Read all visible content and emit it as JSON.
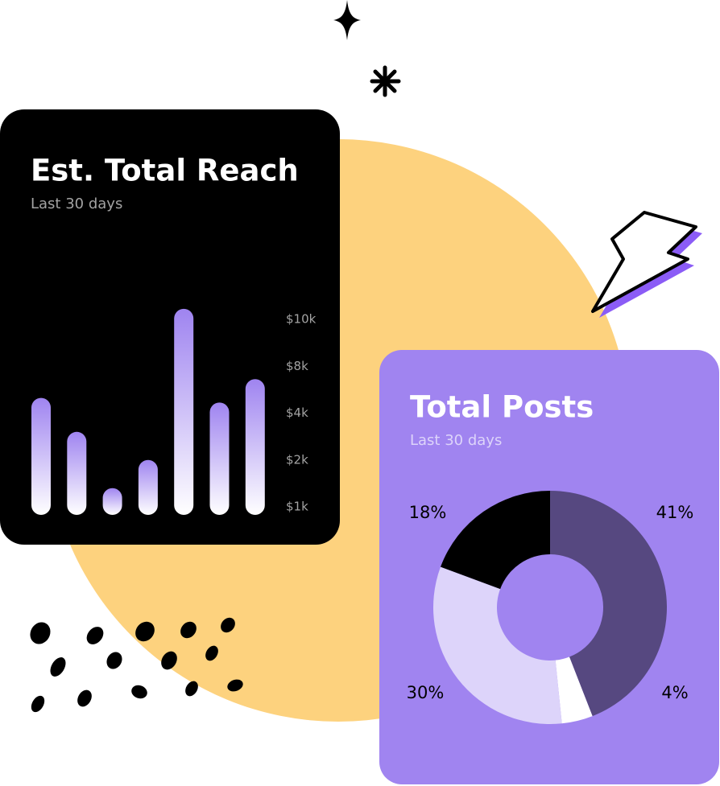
{
  "chart_data": [
    {
      "type": "bar",
      "title": "Est. Total Reach",
      "subtitle": "Last 30 days",
      "values": [
        5300,
        3200,
        1400,
        2000,
        10450,
        4900,
        6900
      ],
      "color": "#9f84f0",
      "ylim": [
        0,
        11000
      ],
      "yticks": [
        {
          "value": 1000,
          "label": "$1k"
        },
        {
          "value": 2000,
          "label": "$2k"
        },
        {
          "value": 4000,
          "label": "$4k"
        },
        {
          "value": 8000,
          "label": "$8k"
        },
        {
          "value": 10000,
          "label": "$10k"
        }
      ]
    },
    {
      "type": "pie",
      "title": "Total Posts",
      "subtitle": "Last 30 days",
      "values": [
        41,
        4,
        30,
        18
      ],
      "value_labels": [
        "41%",
        "4%",
        "30%",
        "18%"
      ],
      "colors": [
        "#564880",
        "#ffffff",
        "#ddd4fa",
        "#000000"
      ],
      "donut": true
    }
  ]
}
